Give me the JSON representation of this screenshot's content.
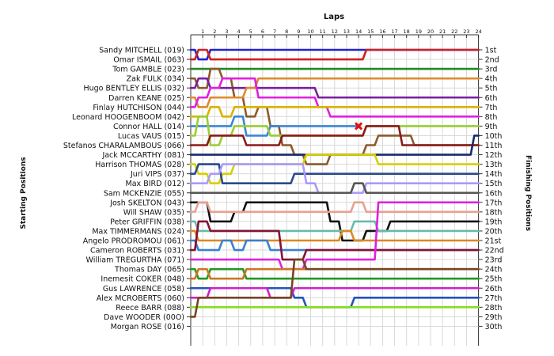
{
  "chart_data": {
    "type": "line",
    "title": "Laps",
    "ylabel_left": "Starting Positions",
    "ylabel_right": "Finishing Positions",
    "laps": [
      1,
      2,
      3,
      4,
      5,
      6,
      7,
      8,
      9,
      10,
      11,
      12,
      13,
      14,
      15,
      16,
      17,
      18,
      19,
      20,
      21,
      22,
      23,
      24
    ],
    "finish_labels": [
      "1st",
      "2nd",
      "3rd",
      "4th",
      "5th",
      "6th",
      "7th",
      "8th",
      "9th",
      "10th",
      "11th",
      "12th",
      "13th",
      "14th",
      "15th",
      "16th",
      "17th",
      "18th",
      "19th",
      "20th",
      "21st",
      "22nd",
      "23rd",
      "24th",
      "25th",
      "26th",
      "27th",
      "28th",
      "29th",
      "30th"
    ],
    "grid": true,
    "retirement_marker": {
      "driver": "Connor HALL (014)",
      "lap": 14,
      "position": 9
    },
    "series": [
      {
        "name": "Sandy MITCHELL (019)",
        "color": "#2222cc",
        "positions": [
          1,
          2,
          1,
          1,
          1,
          1,
          1,
          1,
          1,
          1,
          1,
          1,
          1,
          1,
          1,
          1,
          1,
          1,
          1,
          1,
          1,
          1,
          1,
          1,
          1
        ]
      },
      {
        "name": "Omar ISMAIL (063)",
        "color": "#cc2222",
        "positions": [
          2,
          1,
          2,
          2,
          2,
          2,
          2,
          2,
          2,
          2,
          2,
          2,
          2,
          2,
          2,
          1,
          1,
          1,
          1,
          1,
          1,
          1,
          1,
          1,
          1
        ]
      },
      {
        "name": "Tom GAMBLE (023)",
        "color": "#228822",
        "positions": [
          3,
          3,
          3,
          3,
          3,
          3,
          3,
          3,
          3,
          3,
          3,
          3,
          3,
          3,
          3,
          3,
          3,
          3,
          3,
          3,
          3,
          3,
          3,
          3,
          3
        ]
      },
      {
        "name": "Zak FULK (034)",
        "color": "#8b5a2b",
        "positions": [
          4,
          5,
          3,
          4,
          6,
          8,
          7,
          9,
          11,
          12,
          13,
          13,
          12,
          12,
          12,
          11,
          10,
          10,
          10,
          11,
          11,
          11,
          11,
          11,
          11
        ]
      },
      {
        "name": "Hugo BENTLEY ELLIS (032)",
        "color": "#7a1fa0",
        "positions": [
          5,
          4,
          5,
          5,
          5,
          5,
          5,
          5,
          5,
          5,
          5,
          6,
          6,
          6,
          6,
          6,
          6,
          6,
          6,
          6,
          6,
          6,
          6,
          6,
          6
        ]
      },
      {
        "name": "Darren KEANE (025)",
        "color": "#e08a2c",
        "positions": [
          6,
          7,
          6,
          6,
          6,
          5,
          4,
          4,
          4,
          4,
          4,
          4,
          4,
          4,
          4,
          4,
          4,
          4,
          4,
          4,
          4,
          4,
          4,
          4,
          4
        ]
      },
      {
        "name": "Finlay HUTCHISON (044)",
        "color": "#e020e0",
        "positions": [
          7,
          6,
          5,
          4,
          4,
          4,
          6,
          6,
          6,
          6,
          6,
          7,
          8,
          8,
          8,
          8,
          8,
          8,
          8,
          8,
          8,
          8,
          8,
          8,
          8
        ]
      },
      {
        "name": "Leonard HOOGENBOOM (042)",
        "color": "#d9b300",
        "positions": [
          8,
          8,
          7,
          8,
          7,
          7,
          7,
          7,
          7,
          7,
          7,
          7,
          7,
          7,
          7,
          7,
          7,
          7,
          7,
          7,
          7,
          7,
          7,
          7,
          7
        ]
      },
      {
        "name": "Connor HALL (014)",
        "color": "#3a86d6",
        "positions": [
          9,
          9,
          9,
          9,
          8,
          10,
          10,
          9,
          9,
          9,
          9,
          9,
          9,
          9,
          9
        ]
      },
      {
        "name": "Lucas VAUS (015)",
        "color": "#9acd32",
        "positions": [
          10,
          8,
          11,
          10,
          9,
          9,
          9,
          10,
          10,
          10,
          10,
          10,
          10,
          10,
          10,
          9,
          9,
          9,
          9,
          9,
          9,
          9,
          9,
          9,
          9
        ]
      },
      {
        "name": "Stefanos CHARALAMBOUS (066)",
        "color": "#8b1a1a",
        "positions": [
          11,
          11,
          10,
          10,
          10,
          11,
          11,
          11,
          10,
          10,
          10,
          10,
          10,
          10,
          10,
          9,
          9,
          9,
          11,
          11,
          11,
          11,
          11,
          11,
          11
        ]
      },
      {
        "name": "Jack MCCARTHY (081)",
        "color": "#1a2a6c",
        "positions": [
          12,
          12,
          12,
          12,
          12,
          12,
          12,
          12,
          12,
          12,
          12,
          12,
          12,
          12,
          12,
          12,
          12,
          12,
          12,
          12,
          12,
          12,
          12,
          12,
          10
        ]
      },
      {
        "name": "Harrison THOMAS (028)",
        "color": "#d8d000",
        "positions": [
          13,
          14,
          15,
          14,
          13,
          13,
          13,
          13,
          13,
          13,
          12,
          12,
          12,
          12,
          12,
          12,
          13,
          13,
          13,
          13,
          13,
          13,
          13,
          13,
          13
        ]
      },
      {
        "name": "Juri VIPS (037)",
        "color": "#2a4a8a",
        "positions": [
          14,
          13,
          13,
          15,
          15,
          15,
          15,
          15,
          15,
          14,
          14,
          14,
          14,
          14,
          14,
          14,
          14,
          14,
          14,
          14,
          14,
          14,
          14,
          14,
          14
        ]
      },
      {
        "name": "Max BIRD (012)",
        "color": "#aa99ff",
        "positions": [
          15,
          15,
          14,
          13,
          13,
          13,
          13,
          13,
          13,
          13,
          15,
          16,
          16,
          16,
          16,
          15,
          15,
          15,
          15,
          15,
          15,
          15,
          15,
          15,
          15
        ]
      },
      {
        "name": "Sam MCKENZIE (055)",
        "color": "#555555",
        "positions": [
          16,
          16,
          16,
          16,
          16,
          16,
          16,
          16,
          16,
          16,
          16,
          16,
          16,
          16,
          15,
          16,
          16,
          16,
          16,
          16,
          16,
          16,
          16,
          16,
          16
        ]
      },
      {
        "name": "Josh SKELTON (043)",
        "color": "#111111",
        "positions": [
          17,
          17,
          19,
          19,
          18,
          17,
          17,
          17,
          17,
          17,
          17,
          17,
          19,
          21,
          21,
          20,
          20,
          19,
          19,
          19,
          19,
          19,
          19,
          19,
          19
        ]
      },
      {
        "name": "Will SHAW (035)",
        "color": "#e8a090",
        "positions": [
          18,
          17,
          18,
          18,
          18,
          18,
          18,
          18,
          18,
          18,
          18,
          18,
          18,
          18,
          17,
          18,
          18,
          18,
          18,
          18,
          18,
          18,
          18,
          18,
          18
        ]
      },
      {
        "name": "Peter GRIFFIN (038)",
        "color": "#66bbaa",
        "positions": [
          19,
          20,
          20,
          20,
          20,
          20,
          20,
          20,
          20,
          20,
          20,
          20,
          20,
          20,
          19,
          19,
          20,
          20,
          20,
          20,
          20,
          20,
          20,
          20,
          20
        ]
      },
      {
        "name": "Max TIMMERMANS (024)",
        "color": "#dd8822",
        "positions": [
          20,
          21,
          21,
          21,
          21,
          21,
          21,
          21,
          21,
          21,
          21,
          21,
          21,
          20,
          21,
          21,
          21,
          21,
          21,
          21,
          21,
          21,
          21,
          21,
          21
        ]
      },
      {
        "name": "Angelo PRODROMOU (061)",
        "color": "#3a80d0",
        "positions": [
          21,
          22,
          22,
          21,
          22,
          21,
          21,
          22,
          22,
          22,
          22,
          22,
          22,
          22,
          22,
          22,
          22,
          22,
          22,
          22,
          22,
          22,
          22,
          22,
          22
        ]
      },
      {
        "name": "Cameron ROBERTS (031)",
        "color": "#881133",
        "positions": [
          22,
          19,
          20,
          20,
          20,
          20,
          20,
          20,
          23,
          23,
          22,
          22,
          22,
          22,
          22,
          22,
          22,
          22,
          22,
          22,
          22,
          22,
          22,
          22,
          22
        ]
      },
      {
        "name": "William TREGURTHA (071)",
        "color": "#dd22dd",
        "positions": [
          23,
          23,
          23,
          23,
          23,
          23,
          23,
          23,
          24,
          24,
          23,
          23,
          23,
          23,
          23,
          23,
          17,
          17,
          17,
          17,
          17,
          17,
          17,
          17,
          17
        ]
      },
      {
        "name": "Thomas DAY (065)",
        "color": "#229922",
        "positions": [
          24,
          25,
          24,
          24,
          24,
          25,
          25,
          25,
          25,
          25,
          25,
          25,
          25,
          25,
          25,
          25,
          25,
          25,
          25,
          25,
          25,
          25,
          25,
          25,
          25
        ]
      },
      {
        "name": "Inemesit COKER (048)",
        "color": "#cc7722",
        "positions": [
          25,
          24,
          25,
          25,
          25,
          24,
          24,
          24,
          24,
          24,
          24,
          24,
          24,
          24,
          24,
          24,
          24,
          24,
          24,
          24,
          24,
          24,
          24,
          24,
          24
        ]
      },
      {
        "name": "Gus LAWRENCE (058)",
        "color": "#2255bb",
        "positions": [
          26,
          26,
          26,
          26,
          26,
          26,
          26,
          26,
          26,
          27,
          28,
          28,
          28,
          28,
          27,
          27,
          27,
          27,
          27,
          27,
          27,
          27,
          27,
          27,
          27
        ]
      },
      {
        "name": "Alex MCROBERTS (060)",
        "color": "#cc22cc",
        "positions": [
          27,
          27,
          26,
          26,
          26,
          26,
          26,
          27,
          27,
          26,
          26,
          26,
          26,
          26,
          26,
          26,
          26,
          26,
          26,
          26,
          26,
          26,
          26,
          26,
          26
        ]
      },
      {
        "name": "Reece BARR (088)",
        "color": "#88dd22",
        "positions": [
          28,
          28,
          28,
          28,
          28,
          28,
          28,
          28,
          28,
          28,
          28,
          28,
          28,
          28,
          28,
          28,
          28,
          28,
          28,
          28,
          28,
          28,
          28,
          28,
          28
        ]
      },
      {
        "name": "Dave WOODER (00O)",
        "color": "#774422",
        "positions": [
          29,
          27,
          27,
          27,
          27,
          27,
          27,
          27,
          27,
          23,
          24,
          24,
          24,
          24,
          24,
          24,
          24,
          24,
          24,
          24,
          24,
          24,
          24,
          24,
          24
        ]
      },
      {
        "name": "Morgan ROSE (016)",
        "color": "#aa2222",
        "positions": [
          30
        ]
      }
    ]
  }
}
